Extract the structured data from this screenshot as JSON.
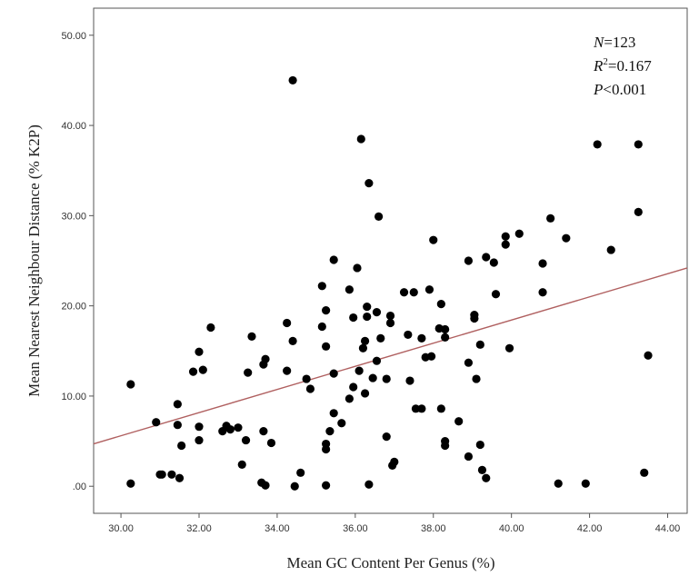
{
  "chart_data": {
    "type": "scatter",
    "xlabel": "Mean GC Content Per Genus (%)",
    "ylabel": "Mean Nearest Neighbour Distance (% K2P)",
    "xlim": [
      29.3,
      44.5
    ],
    "ylim": [
      -3.0,
      53.0
    ],
    "x_ticks": [
      30,
      32,
      34,
      36,
      38,
      40,
      42,
      44
    ],
    "x_tick_labels": [
      "30.00",
      "32.00",
      "34.00",
      "36.00",
      "38.00",
      "40.00",
      "42.00",
      "44.00"
    ],
    "y_ticks": [
      0,
      10,
      20,
      30,
      40,
      50
    ],
    "y_tick_labels": [
      ".00",
      "10.00",
      "20.00",
      "30.00",
      "40.00",
      "50.00"
    ],
    "grid": false,
    "annotations": {
      "n_label": "N",
      "n_value": "=123",
      "r2_label": "R",
      "r2_sup": "2",
      "r2_value": "=0.167",
      "p_label": "P",
      "p_value": "<0.001"
    },
    "fit_line": {
      "x": [
        29.3,
        44.5
      ],
      "y": [
        4.7,
        24.2
      ],
      "color": "#b06060"
    },
    "point_color": "#000000",
    "points": [
      [
        30.25,
        11.3
      ],
      [
        30.25,
        0.3
      ],
      [
        30.9,
        7.1
      ],
      [
        31.05,
        1.3
      ],
      [
        31.3,
        1.3
      ],
      [
        31.45,
        9.1
      ],
      [
        31.45,
        6.8
      ],
      [
        31.5,
        0.9
      ],
      [
        31.55,
        4.5
      ],
      [
        31.85,
        12.7
      ],
      [
        32.0,
        14.9
      ],
      [
        32.0,
        6.6
      ],
      [
        32.0,
        5.1
      ],
      [
        32.1,
        12.9
      ],
      [
        32.3,
        17.6
      ],
      [
        32.6,
        6.1
      ],
      [
        32.7,
        6.7
      ],
      [
        32.8,
        6.3
      ],
      [
        33.1,
        2.4
      ],
      [
        33.2,
        5.1
      ],
      [
        33.25,
        12.6
      ],
      [
        33.35,
        16.6
      ],
      [
        33.6,
        0.4
      ],
      [
        33.65,
        6.1
      ],
      [
        33.65,
        13.5
      ],
      [
        33.7,
        14.1
      ],
      [
        33.7,
        0.1
      ],
      [
        33.85,
        4.8
      ],
      [
        34.25,
        18.1
      ],
      [
        34.25,
        12.8
      ],
      [
        34.4,
        16.1
      ],
      [
        34.4,
        45.0
      ],
      [
        34.45,
        0.0
      ],
      [
        34.6,
        1.5
      ],
      [
        34.75,
        11.9
      ],
      [
        34.85,
        10.8
      ],
      [
        35.15,
        22.2
      ],
      [
        35.15,
        17.7
      ],
      [
        35.25,
        19.5
      ],
      [
        35.25,
        15.5
      ],
      [
        35.25,
        4.7
      ],
      [
        35.25,
        4.1
      ],
      [
        35.25,
        0.1
      ],
      [
        35.35,
        6.1
      ],
      [
        35.45,
        25.1
      ],
      [
        35.45,
        12.5
      ],
      [
        35.45,
        8.1
      ],
      [
        35.65,
        7.0
      ],
      [
        35.85,
        21.8
      ],
      [
        35.85,
        9.7
      ],
      [
        35.95,
        18.7
      ],
      [
        35.95,
        11.0
      ],
      [
        36.05,
        24.2
      ],
      [
        36.1,
        12.8
      ],
      [
        36.15,
        38.5
      ],
      [
        36.2,
        15.3
      ],
      [
        36.25,
        16.1
      ],
      [
        36.25,
        10.3
      ],
      [
        36.3,
        19.9
      ],
      [
        36.3,
        18.8
      ],
      [
        36.35,
        33.6
      ],
      [
        36.35,
        0.2
      ],
      [
        36.45,
        12.0
      ],
      [
        36.55,
        19.3
      ],
      [
        36.55,
        13.9
      ],
      [
        36.6,
        29.9
      ],
      [
        36.65,
        16.4
      ],
      [
        36.8,
        11.9
      ],
      [
        36.8,
        5.5
      ],
      [
        36.9,
        18.9
      ],
      [
        36.9,
        18.1
      ],
      [
        36.95,
        2.3
      ],
      [
        37.0,
        2.7
      ],
      [
        37.25,
        21.5
      ],
      [
        37.35,
        16.8
      ],
      [
        37.4,
        11.7
      ],
      [
        37.5,
        21.5
      ],
      [
        37.55,
        8.6
      ],
      [
        37.7,
        8.6
      ],
      [
        37.7,
        16.4
      ],
      [
        37.8,
        14.3
      ],
      [
        37.9,
        21.8
      ],
      [
        37.95,
        14.4
      ],
      [
        38.0,
        27.3
      ],
      [
        38.15,
        17.5
      ],
      [
        38.2,
        20.2
      ],
      [
        38.2,
        8.6
      ],
      [
        38.3,
        17.4
      ],
      [
        38.3,
        16.5
      ],
      [
        38.3,
        5.0
      ],
      [
        38.3,
        4.5
      ],
      [
        38.65,
        7.2
      ],
      [
        38.9,
        25.0
      ],
      [
        38.9,
        13.7
      ],
      [
        38.9,
        3.3
      ],
      [
        39.05,
        19.0
      ],
      [
        39.05,
        18.6
      ],
      [
        39.1,
        11.9
      ],
      [
        39.2,
        15.7
      ],
      [
        39.2,
        4.6
      ],
      [
        39.25,
        1.8
      ],
      [
        39.35,
        25.4
      ],
      [
        39.35,
        0.9
      ],
      [
        39.55,
        24.8
      ],
      [
        39.6,
        21.3
      ],
      [
        39.85,
        27.7
      ],
      [
        39.85,
        26.8
      ],
      [
        39.95,
        15.3
      ],
      [
        40.2,
        28.0
      ],
      [
        40.8,
        24.7
      ],
      [
        40.8,
        21.5
      ],
      [
        41.0,
        29.7
      ],
      [
        41.2,
        0.3
      ],
      [
        41.4,
        27.5
      ],
      [
        41.9,
        0.3
      ],
      [
        42.2,
        37.9
      ],
      [
        42.55,
        26.2
      ],
      [
        43.25,
        37.9
      ],
      [
        43.25,
        30.4
      ],
      [
        43.4,
        1.5
      ],
      [
        43.5,
        14.5
      ],
      [
        31.0,
        1.3
      ],
      [
        33.0,
        6.5
      ]
    ]
  }
}
